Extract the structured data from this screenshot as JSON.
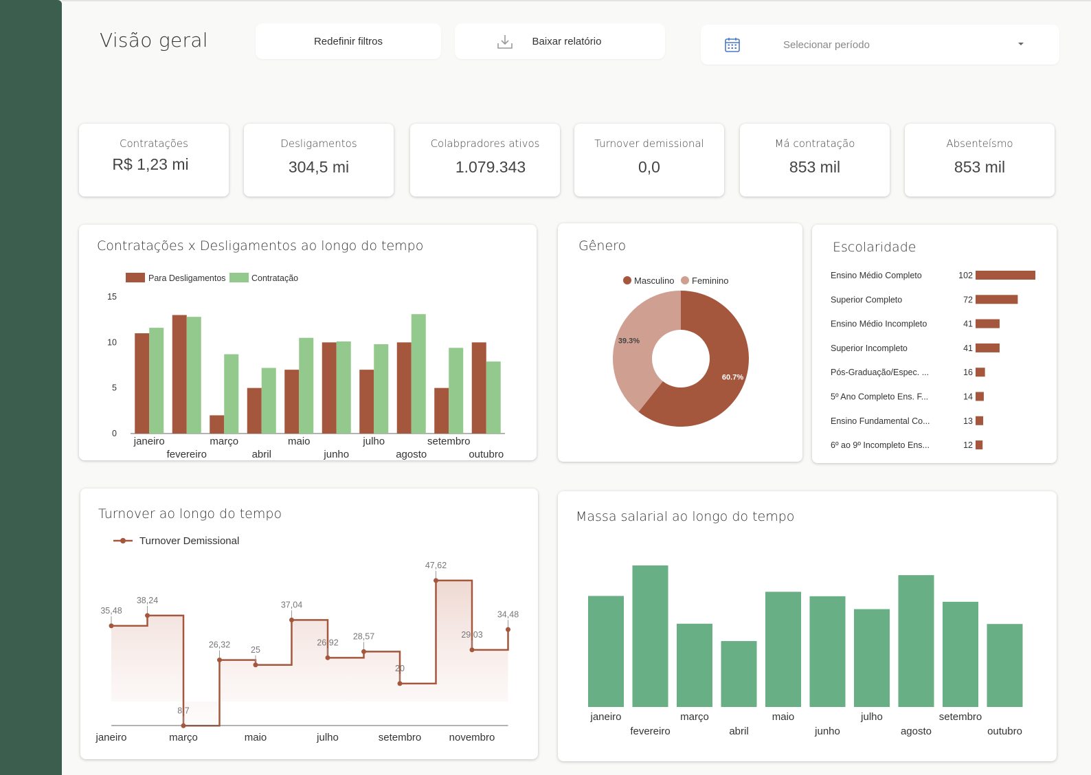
{
  "header": {
    "title": "Visão geral",
    "reset_label": "Redefinir filtros",
    "download_label": "Baixar relatório",
    "period_placeholder": "Selecionar período"
  },
  "kpis": [
    {
      "label": "Contratações",
      "value": "R$ 1,23 mi"
    },
    {
      "label": "Desligamentos",
      "value": "304,5 mi"
    },
    {
      "label": "Colabpradores ativos",
      "value": "1.079.343"
    },
    {
      "label": "Turnover demissional",
      "value": "0,0"
    },
    {
      "label": "Má contratação",
      "value": "853 mil"
    },
    {
      "label": "Absenteísmo",
      "value": "853 mil"
    }
  ],
  "colors": {
    "sidebar": "#3b5e4f",
    "brown": "#a4573c",
    "light_green": "#93c98c",
    "pink": "#cfa092",
    "green": "#68af86"
  },
  "chart_data": [
    {
      "type": "bar",
      "title": "Contratações x Desligamentos ao longo do tempo",
      "categories": [
        "janeiro",
        "fevereiro",
        "março",
        "abril",
        "maio",
        "junho",
        "julho",
        "agosto",
        "setembro",
        "outubro"
      ],
      "series": [
        {
          "name": "Para Desligamentos",
          "values": [
            11,
            13,
            2,
            5,
            7,
            10,
            7,
            10,
            5,
            10
          ]
        },
        {
          "name": "Contratação",
          "values": [
            11.6,
            12.8,
            8.7,
            7.2,
            10.5,
            10.1,
            9.8,
            13.1,
            9.4,
            7.9
          ]
        }
      ],
      "yticks": [
        0,
        5,
        10,
        15
      ],
      "ylim": [
        0,
        15
      ],
      "legend": "top-left"
    },
    {
      "type": "pie",
      "title": "Gênero",
      "labels": [
        "Masculino",
        "Feminino"
      ],
      "values": [
        60.7,
        39.3
      ],
      "value_labels": [
        "60.7%",
        "39.3%"
      ],
      "donut": true,
      "legend": "top"
    },
    {
      "type": "bar",
      "orientation": "horizontal",
      "title": "Escolaridade",
      "categories": [
        "Ensino Médio Completo",
        "Superior Completo",
        "Ensino Médio Incompleto",
        "Superior Incompleto",
        "Pós-Graduação/Espec. ...",
        "5º Ano Completo Ens. F...",
        "Ensino Fundamental Co...",
        "6º ao 9º Incompleto Ens..."
      ],
      "values": [
        102,
        72,
        41,
        41,
        16,
        14,
        13,
        12
      ]
    },
    {
      "type": "line",
      "step": true,
      "title": "Turnover ao longo do tempo",
      "series": [
        {
          "name": "Turnover Demissional",
          "values": [
            35.48,
            38.24,
            8.7,
            26.32,
            25,
            37.04,
            26.92,
            28.57,
            20,
            47.62,
            29.03,
            34.48
          ],
          "labels": [
            "35,48",
            "38,24",
            "8,7",
            "26,32",
            "25",
            "37,04",
            "26,92",
            "28,57",
            "20",
            "47,62",
            "29,03",
            "34,48"
          ]
        }
      ],
      "x_ticks": [
        "janeiro",
        "março",
        "maio",
        "julho",
        "setembro",
        "novembro"
      ],
      "legend": "top-left"
    },
    {
      "type": "bar",
      "title": "Massa salarial ao longo do tempo",
      "categories": [
        "janeiro",
        "fevereiro",
        "março",
        "abril",
        "maio",
        "junho",
        "julho",
        "agosto",
        "setembro",
        "outubro"
      ],
      "values": [
        8.0,
        10.2,
        6.0,
        4.75,
        8.3,
        7.98,
        7.05,
        9.5,
        7.58,
        5.98
      ]
    }
  ]
}
